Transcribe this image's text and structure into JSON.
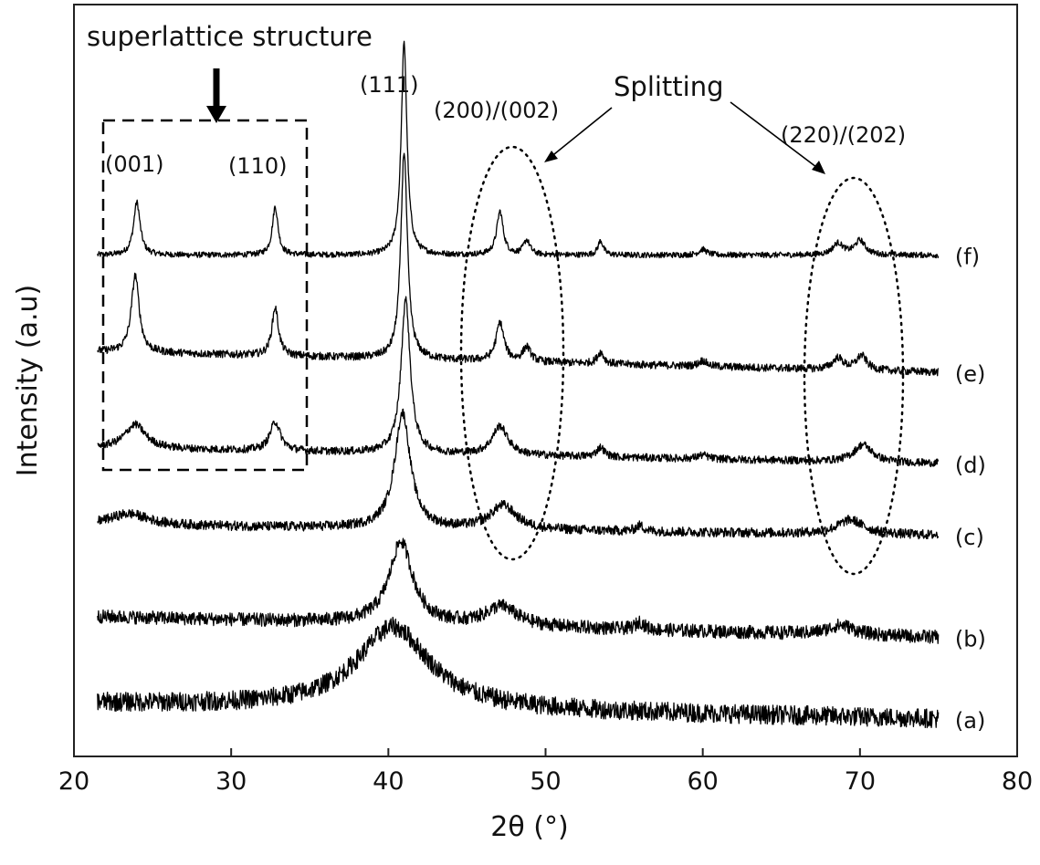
{
  "chart_data": {
    "type": "line",
    "xlabel": "2θ (°)",
    "ylabel": "Intensity (a.u)",
    "xlim": [
      20,
      80
    ],
    "xticks": [
      20,
      30,
      40,
      50,
      60,
      70,
      80
    ],
    "x_range": [
      21.5,
      75
    ],
    "y_ticks_shown": false,
    "grid": false,
    "series": [
      {
        "label": "(f)",
        "baseline": 5.0,
        "noise": 0.03,
        "slope": 0.0,
        "peaks": [
          {
            "x": 24.0,
            "h": 0.55,
            "w": 0.25
          },
          {
            "x": 32.8,
            "h": 0.5,
            "w": 0.22
          },
          {
            "x": 41.0,
            "h": 2.2,
            "w": 0.22
          },
          {
            "x": 47.1,
            "h": 0.45,
            "w": 0.25
          },
          {
            "x": 48.8,
            "h": 0.15,
            "w": 0.25
          },
          {
            "x": 53.5,
            "h": 0.15,
            "w": 0.2
          },
          {
            "x": 60.0,
            "h": 0.06,
            "w": 0.3
          },
          {
            "x": 68.6,
            "h": 0.12,
            "w": 0.4
          },
          {
            "x": 70.0,
            "h": 0.15,
            "w": 0.4
          }
        ]
      },
      {
        "label": "(e)",
        "baseline": 4.0,
        "noise": 0.04,
        "slope": -0.004,
        "peaks": [
          {
            "x": 23.9,
            "h": 0.8,
            "w": 0.3
          },
          {
            "x": 32.8,
            "h": 0.5,
            "w": 0.25
          },
          {
            "x": 41.0,
            "h": 2.15,
            "w": 0.25
          },
          {
            "x": 47.1,
            "h": 0.4,
            "w": 0.3
          },
          {
            "x": 48.8,
            "h": 0.15,
            "w": 0.3
          },
          {
            "x": 53.5,
            "h": 0.12,
            "w": 0.25
          },
          {
            "x": 60.0,
            "h": 0.06,
            "w": 0.3
          },
          {
            "x": 68.6,
            "h": 0.12,
            "w": 0.4
          },
          {
            "x": 70.1,
            "h": 0.15,
            "w": 0.4
          }
        ]
      },
      {
        "label": "(d)",
        "baseline": 3.0,
        "noise": 0.04,
        "slope": -0.003,
        "peaks": [
          {
            "x": 23.9,
            "h": 0.25,
            "w": 0.8
          },
          {
            "x": 32.8,
            "h": 0.3,
            "w": 0.4
          },
          {
            "x": 41.1,
            "h": 1.6,
            "w": 0.35
          },
          {
            "x": 47.1,
            "h": 0.3,
            "w": 0.6
          },
          {
            "x": 53.5,
            "h": 0.1,
            "w": 0.3
          },
          {
            "x": 60.0,
            "h": 0.04,
            "w": 0.4
          },
          {
            "x": 70.2,
            "h": 0.18,
            "w": 0.7
          }
        ]
      },
      {
        "label": "(c)",
        "baseline": 2.2,
        "noise": 0.05,
        "slope": -0.002,
        "peaks": [
          {
            "x": 23.5,
            "h": 0.12,
            "w": 1.5
          },
          {
            "x": 40.9,
            "h": 1.2,
            "w": 0.6
          },
          {
            "x": 47.3,
            "h": 0.25,
            "w": 1.0
          },
          {
            "x": 56.0,
            "h": 0.06,
            "w": 0.3
          },
          {
            "x": 69.4,
            "h": 0.15,
            "w": 1.0
          }
        ]
      },
      {
        "label": "(b)",
        "baseline": 1.25,
        "noise": 0.07,
        "slope": -0.004,
        "peaks": [
          {
            "x": 40.8,
            "h": 0.85,
            "w": 0.9
          },
          {
            "x": 47.2,
            "h": 0.2,
            "w": 1.2
          },
          {
            "x": 56.0,
            "h": 0.08,
            "w": 0.3
          },
          {
            "x": 68.8,
            "h": 0.1,
            "w": 1.0
          }
        ]
      },
      {
        "label": "(a)",
        "baseline": 0.35,
        "noise": 0.1,
        "slope": -0.003,
        "peaks": [
          {
            "x": 40.3,
            "h": 0.85,
            "w": 2.8
          }
        ]
      }
    ],
    "annotations": {
      "superlattice": "superlattice structure",
      "splitting": "Splitting",
      "p001": "(001)",
      "p110": "(110)",
      "p111": "(111)",
      "p200": "(200)/(002)",
      "p220": "(220)/(202)"
    }
  }
}
